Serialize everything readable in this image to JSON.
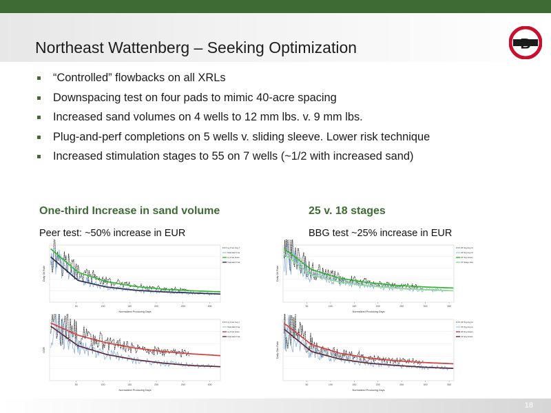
{
  "slide": {
    "title": "Northeast Wattenberg – Seeking Optimization",
    "page_number": "18",
    "logo_letter": "B"
  },
  "bullets": [
    "“Controlled” flowbacks on all XRLs",
    "Downspacing test on four pads to mimic 40-acre spacing",
    "Increased sand volumes on 4 wells to 12 mm lbs. v. 9 mm lbs.",
    "Plug-and-perf completions on 5 wells v. sliding sleeve. Lower risk technique",
    "Increased stimulation stages to 55 on 7 wells (~1/2 with increased sand)"
  ],
  "left_section": {
    "heading": "One-third Increase in sand volume",
    "note": "Peer test: ~50% increase in EUR"
  },
  "right_section": {
    "heading": "25 v. 18 stages",
    "note": "BBG test ~25% increase in EUR"
  },
  "colors": {
    "brand_green": "#3d6b33",
    "highlight_green": "#2eb82e",
    "dark_navy": "#2c2f4a",
    "data_blue": "#6f9fd0",
    "data_black": "#111111",
    "curve_red": "#d63c3c",
    "curve_plum": "#5a2a3c",
    "logo_red": "#c8102e"
  },
  "chart_data": [
    {
      "type": "line",
      "xlabel": "Normalized Producing Days",
      "ylabel": "Daily Oil Rate",
      "x_ticks": [
        50,
        100,
        150,
        200,
        250,
        300
      ],
      "xlim": [
        0,
        320
      ],
      "series": [
        {
          "name": "Lg Frac Avg Oil Rate",
          "color": "#111111",
          "style": "dashed-data"
        },
        {
          "name": "Standard Frac Avg Oil Rate",
          "color": "#6f9fd0",
          "style": "data"
        },
        {
          "name": "Lg Frac History Match",
          "color": "#2eb82e",
          "style": "fit",
          "values": [
            1.0,
            0.55,
            0.38,
            0.29,
            0.24,
            0.21,
            0.19
          ]
        },
        {
          "name": "Standard Frac History Match",
          "color": "#2c2f4a",
          "style": "fit",
          "values": [
            0.85,
            0.4,
            0.28,
            0.22,
            0.19,
            0.17,
            0.15
          ]
        }
      ],
      "legend": "right"
    },
    {
      "type": "line",
      "xlabel": "Normalized Producing Days",
      "ylabel": "GOR",
      "x_ticks": [
        50,
        100,
        150,
        200,
        250,
        300
      ],
      "xlim": [
        0,
        320
      ],
      "series": [
        {
          "name": "Lg Frac Avg Gas Rate",
          "color": "#111111",
          "style": "dashed-data"
        },
        {
          "name": "Standard Frac Avg Gas Rate",
          "color": "#6f9fd0",
          "style": "data"
        },
        {
          "name": "Lg Frac History Match",
          "color": "#d63c3c",
          "style": "fit",
          "values": [
            1.0,
            0.78,
            0.65,
            0.56,
            0.5,
            0.46,
            0.43
          ]
        },
        {
          "name": "Standard Frac History Match",
          "color": "#5a2a3c",
          "style": "fit",
          "values": [
            0.95,
            0.6,
            0.45,
            0.36,
            0.3,
            0.26,
            0.24
          ]
        }
      ],
      "legend": "right"
    },
    {
      "type": "line",
      "xlabel": "Normalized Producing Days",
      "ylabel": "Daily Oil Rate",
      "x_ticks": [
        50,
        100,
        150,
        200,
        250,
        300,
        350
      ],
      "xlim": [
        0,
        360
      ],
      "series": [
        {
          "name": "25 Stg Avg Oil Rate",
          "color": "#111111",
          "style": "dashed-data"
        },
        {
          "name": "18 Stg Avg Oil Rate",
          "color": "#6f9fd0",
          "style": "data"
        },
        {
          "name": "25 Stg History Match",
          "color": "#2eb82e",
          "style": "fit",
          "values": [
            1.0,
            0.6,
            0.44,
            0.36,
            0.31,
            0.28,
            0.26
          ]
        },
        {
          "name": "18 Stage History Match",
          "color": "#8fd88f",
          "style": "fit",
          "values": [
            0.9,
            0.5,
            0.37,
            0.3,
            0.26,
            0.23,
            0.21
          ]
        }
      ],
      "legend": "right"
    },
    {
      "type": "line",
      "xlabel": "Normalized Producing Days",
      "ylabel": "Daily Gas Rate",
      "x_ticks": [
        50,
        100,
        150,
        200,
        250,
        300,
        350
      ],
      "xlim": [
        0,
        360
      ],
      "series": [
        {
          "name": "25 Stg Avg Gas Rate",
          "color": "#111111",
          "style": "dashed-data"
        },
        {
          "name": "18 Stg Avg Gas Rate",
          "color": "#6f9fd0",
          "style": "data"
        },
        {
          "name": "25 Stg History Match",
          "color": "#d63c3c",
          "style": "fit",
          "values": [
            1.0,
            0.62,
            0.47,
            0.39,
            0.34,
            0.31,
            0.29
          ]
        },
        {
          "name": "18 Stg History Match",
          "color": "#5a2a3c",
          "style": "fit",
          "values": [
            0.9,
            0.5,
            0.37,
            0.3,
            0.26,
            0.23,
            0.21
          ]
        }
      ],
      "legend": "right"
    }
  ]
}
